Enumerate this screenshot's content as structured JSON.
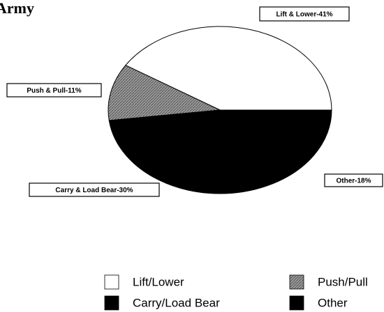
{
  "chart_data": {
    "type": "pie",
    "title": "Army",
    "categories": [
      "Lift/Lower",
      "Push/Pull",
      "Carry/Load Bear",
      "Other"
    ],
    "values": [
      41,
      11,
      30,
      18
    ],
    "value_labels": [
      "Lift & Lower-41%",
      "Push & Pull-11%",
      "Carry & Load Bear-30%",
      "Other-18%"
    ],
    "colors": [
      "#ffffff",
      "#8c8c8c",
      "#000000",
      "#000000"
    ]
  }
}
